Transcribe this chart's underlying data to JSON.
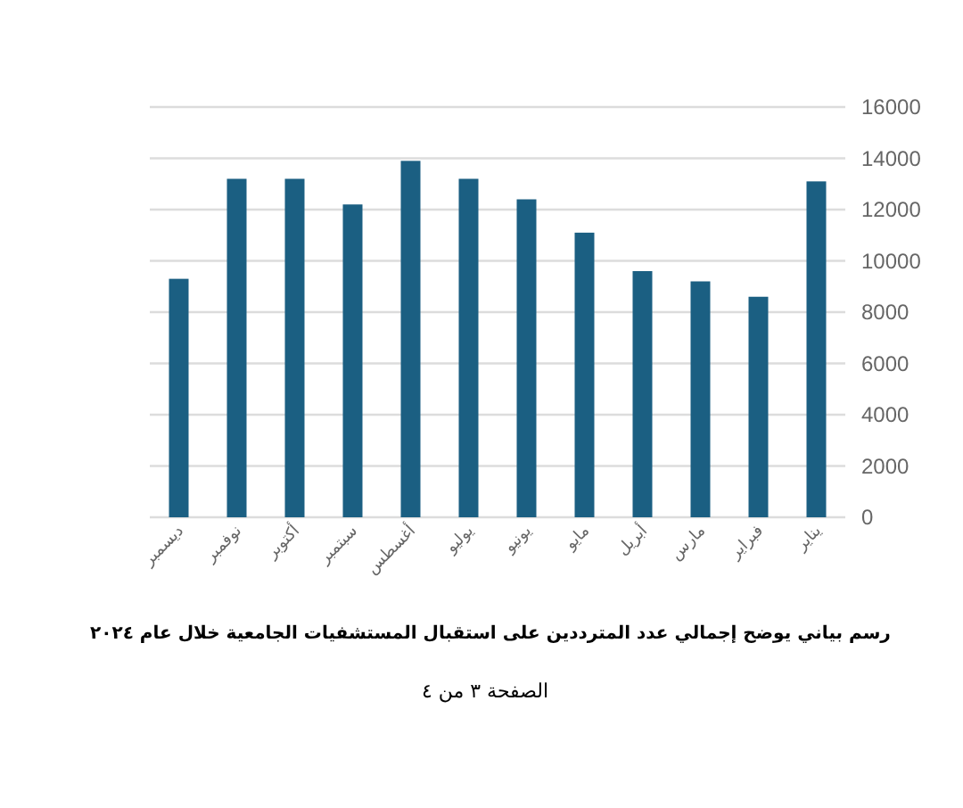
{
  "chart_data": {
    "type": "bar",
    "title": "رسم بياني يوضح إجمالي عدد المترددين على استقبال المستشفيات الجامعية خلال عام ٢٠٢٤",
    "annotations": [
      "الصفحة ٣ من ٤"
    ],
    "categories": [
      "ديسمبر",
      "نوفمبر",
      "أكتوبر",
      "سبتمبر",
      "أغسطس",
      "يوليو",
      "يونيو",
      "مايو",
      "أبريل",
      "مارس",
      "فبراير",
      "يناير"
    ],
    "values": [
      9300,
      13200,
      13200,
      12200,
      13900,
      13200,
      12400,
      11100,
      9600,
      9200,
      8600,
      13100
    ],
    "color": "#1b5f82",
    "ylim": [
      0,
      16000
    ],
    "yticks": [
      0,
      2000,
      4000,
      6000,
      8000,
      10000,
      12000,
      14000,
      16000
    ],
    "grid": "y"
  }
}
